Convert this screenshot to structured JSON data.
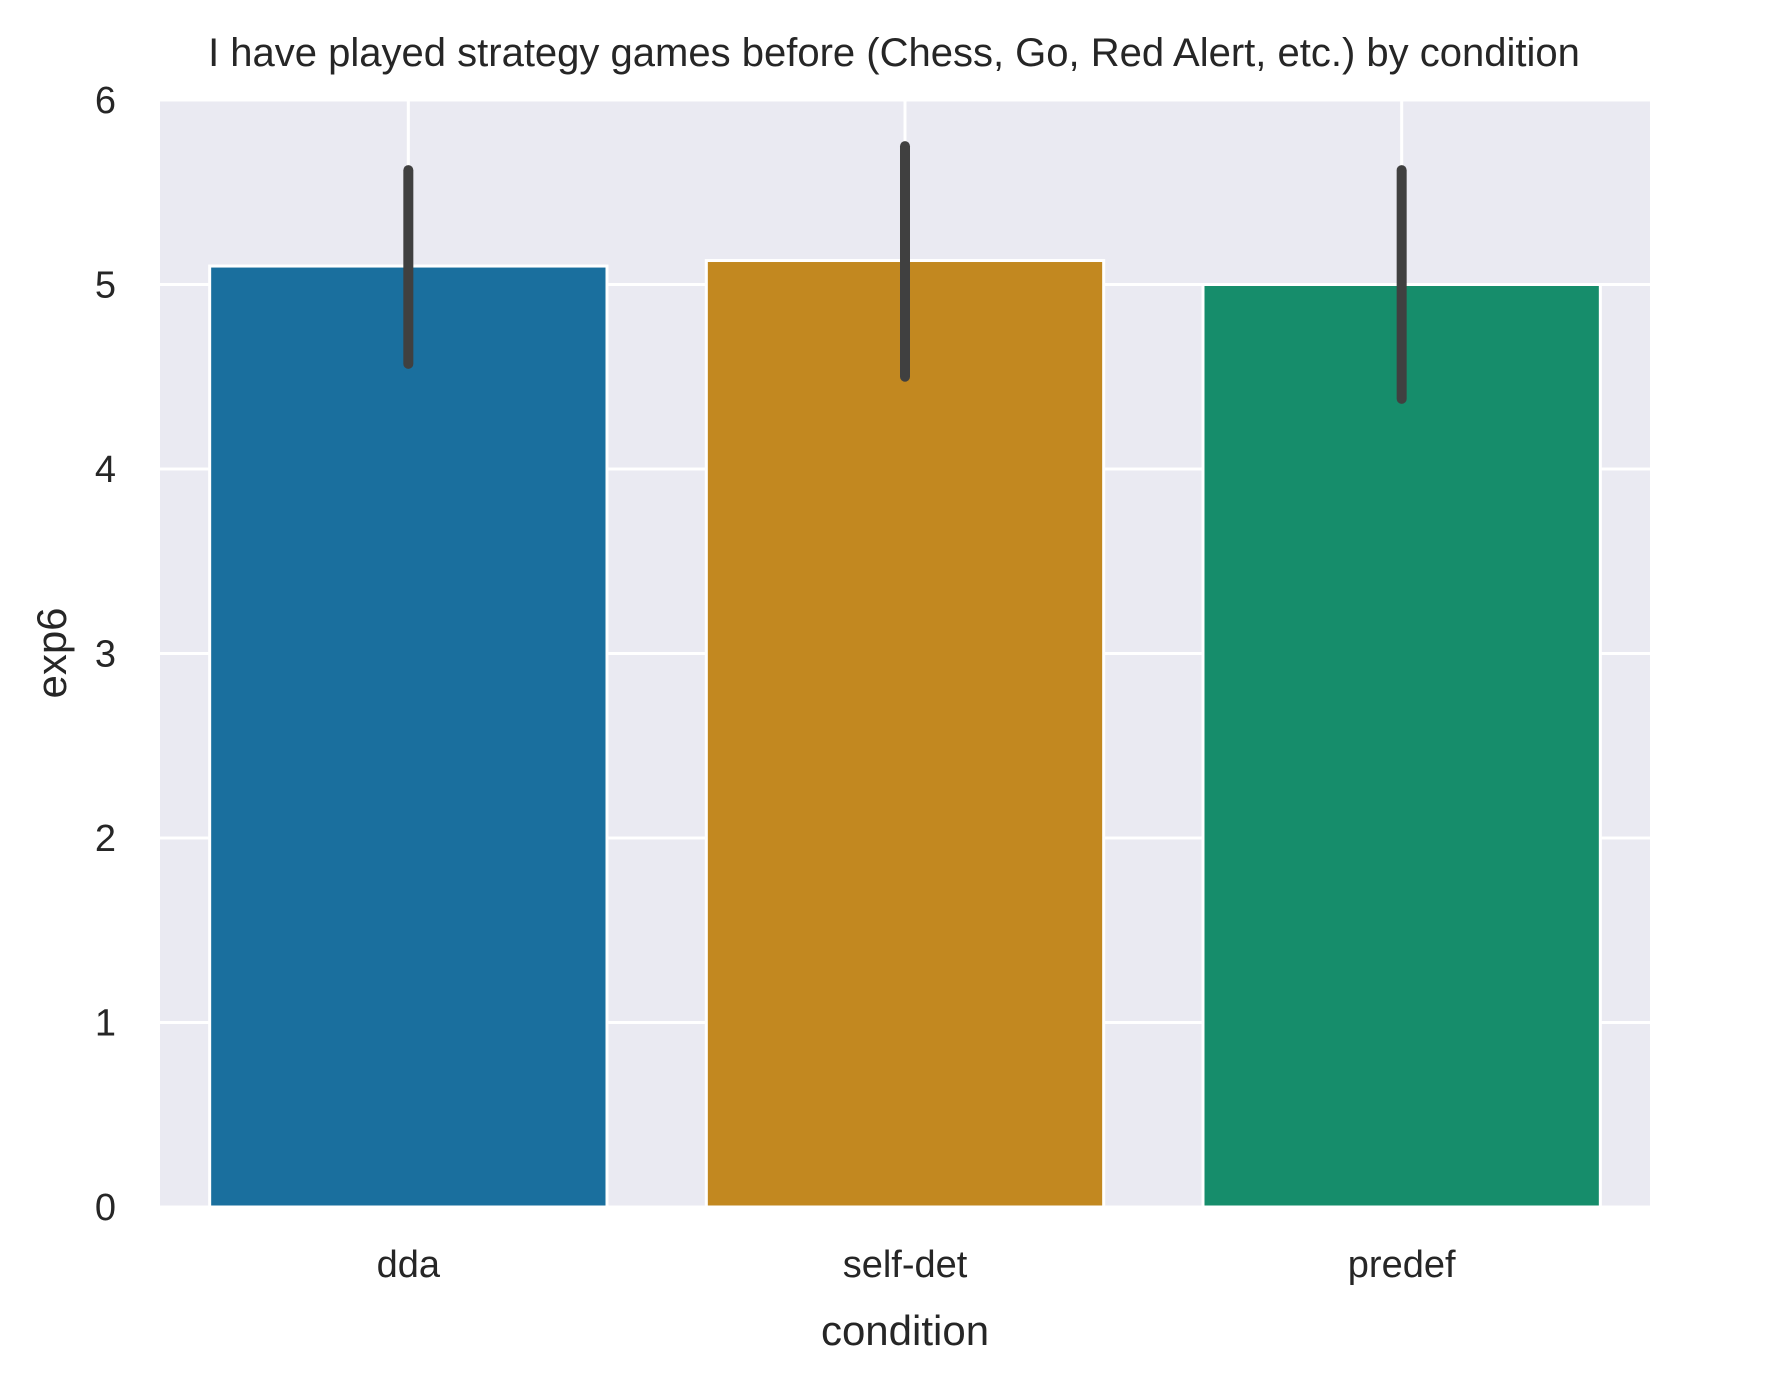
{
  "chart_data": {
    "type": "bar",
    "title": "I have played strategy games before (Chess, Go, Red Alert, etc.) by condition",
    "xlabel": "condition",
    "ylabel": "exp6",
    "categories": [
      "dda",
      "self-det",
      "predef"
    ],
    "values": [
      5.1,
      5.13,
      5.0
    ],
    "error_low": [
      4.57,
      4.5,
      4.38
    ],
    "error_high": [
      5.62,
      5.75,
      5.62
    ],
    "ylim": [
      0,
      6
    ],
    "yticks": [
      0,
      1,
      2,
      3,
      4,
      5,
      6
    ],
    "grid": true,
    "colors": [
      "#1a6f9e",
      "#c28820",
      "#168d6b"
    ],
    "background_color": "#eaeaf2",
    "error_bar_color": "#404040"
  }
}
